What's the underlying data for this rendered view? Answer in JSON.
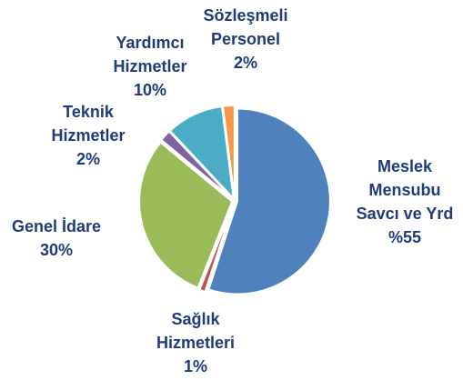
{
  "chart_data": {
    "type": "pie",
    "categories": [
      "Meslek Mensubu Savcı ve Yrd",
      "Sağlık Hizmetleri",
      "Genel İdare",
      "Teknik Hizmetler",
      "Yardımcı Hizmetler",
      "Sözleşmeli Personel"
    ],
    "values": [
      55,
      1,
      30,
      2,
      10,
      2
    ],
    "value_labels": [
      "%55",
      "1%",
      "30%",
      "2%",
      "10%",
      "2%"
    ],
    "colors": [
      "#4f81bd",
      "#c0504d",
      "#9bbb59",
      "#8064a2",
      "#4bacc6",
      "#f79646"
    ]
  }
}
